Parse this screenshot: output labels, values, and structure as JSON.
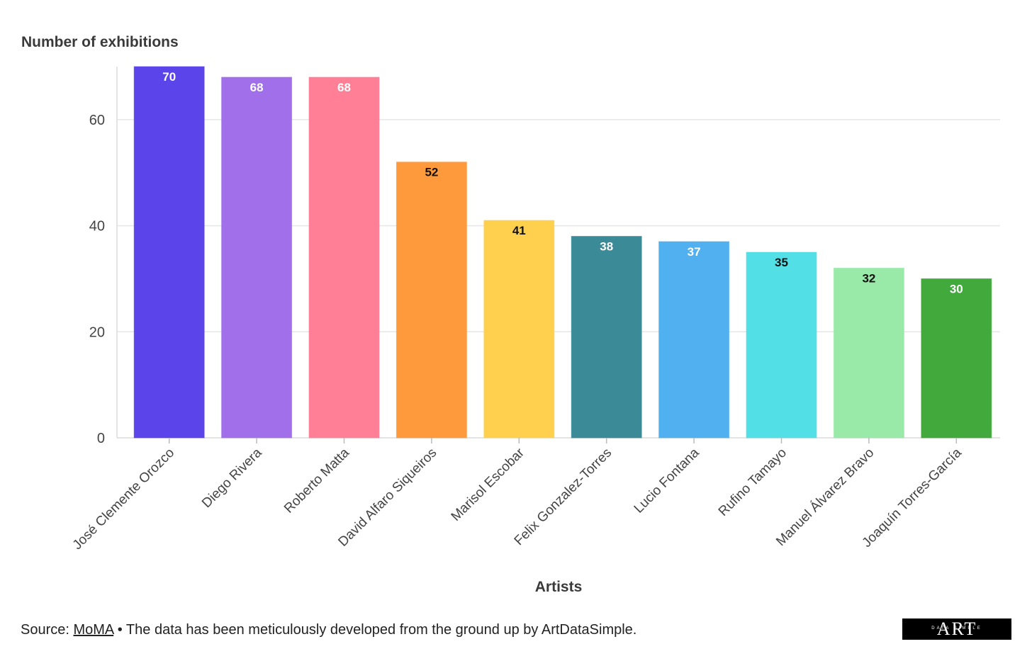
{
  "chart_data": {
    "type": "bar",
    "title": "",
    "ylabel": "Number of exhibitions",
    "xlabel": "Artists",
    "ylim": [
      0,
      70
    ],
    "yticks": [
      0,
      20,
      40,
      60
    ],
    "grid": true,
    "categories": [
      "José Clemente Orozco",
      "Diego Rivera",
      "Roberto Matta",
      "David Alfaro Siqueiros",
      "Marisol Escobar",
      "Felix Gonzalez-Torres",
      "Lucio Fontana",
      "Rufino Tamayo",
      "Manuel Álvarez Bravo",
      "Joaquín Torres-García"
    ],
    "values": [
      70,
      68,
      68,
      52,
      41,
      38,
      37,
      35,
      32,
      30
    ],
    "colors": [
      "#5b45ea",
      "#a06fe9",
      "#ff7f96",
      "#ff9a3c",
      "#ffd04d",
      "#3a8b97",
      "#50b0f0",
      "#52e0e6",
      "#99e9a8",
      "#42a93c"
    ],
    "label_colors": [
      "#ffffff",
      "#ffffff",
      "#ffffff",
      "#111111",
      "#111111",
      "#ffffff",
      "#ffffff",
      "#111111",
      "#111111",
      "#ffffff"
    ]
  },
  "footer": {
    "source_prefix": "Source: ",
    "source_link": "MoMA",
    "source_suffix": " • The data has been meticulously developed from the ground up by ArtDataSimple."
  },
  "logo": {
    "big": "ART",
    "small": "DATA SIMPLE"
  }
}
